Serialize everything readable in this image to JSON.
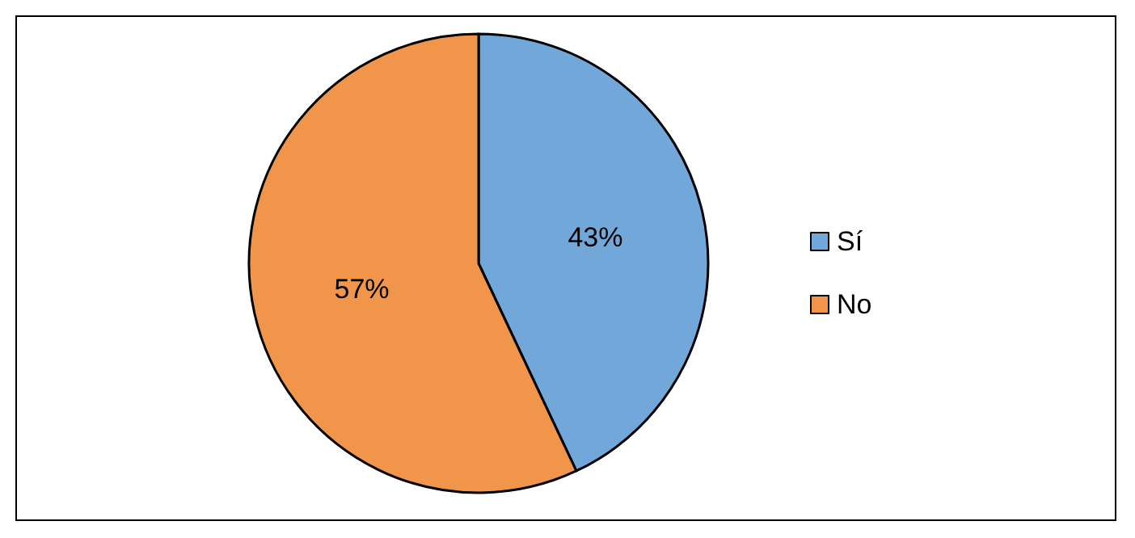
{
  "chart_data": {
    "type": "pie",
    "categories": [
      "Sí",
      "No"
    ],
    "values": [
      43,
      57
    ],
    "colors": [
      "#71a8d9",
      "#f0954a"
    ],
    "value_labels": [
      "43%",
      "57%"
    ],
    "legend": "right"
  }
}
